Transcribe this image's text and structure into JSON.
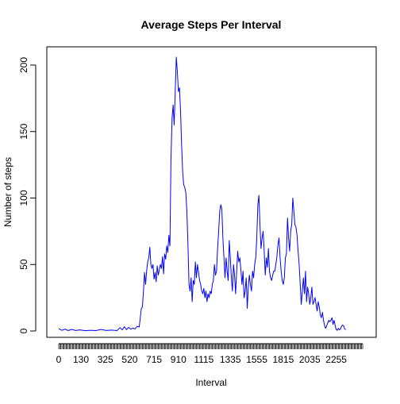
{
  "chart_data": {
    "type": "line",
    "title": "Average Steps Per Interval",
    "xlabel": "Interval",
    "ylabel": "Number of steps",
    "series_color": "#0000FF",
    "ylim": [
      0,
      210
    ],
    "y_ticks": [
      0,
      50,
      100,
      150,
      200
    ],
    "x_tick_labels": [
      "0",
      "130",
      "325",
      "520",
      "715",
      "910",
      "1115",
      "1335",
      "1555",
      "1815",
      "2035",
      "2255"
    ],
    "x_label_positions": [
      0,
      21,
      44,
      67,
      90,
      113,
      137,
      162,
      187,
      212,
      237,
      262
    ],
    "num_intervals": 288,
    "grid": false,
    "legend": "none",
    "points": [
      [
        0,
        1.7
      ],
      [
        3,
        0.5
      ],
      [
        6,
        1.4
      ],
      [
        9,
        0.3
      ],
      [
        12,
        1.2
      ],
      [
        16,
        0.4
      ],
      [
        20,
        0.8
      ],
      [
        25,
        0.2
      ],
      [
        30,
        0.5
      ],
      [
        35,
        0.3
      ],
      [
        40,
        1.1
      ],
      [
        45,
        0.4
      ],
      [
        50,
        0.7
      ],
      [
        55,
        0.3
      ],
      [
        58,
        2.5
      ],
      [
        60,
        0.8
      ],
      [
        62,
        3.2
      ],
      [
        64,
        1.0
      ],
      [
        66,
        2.8
      ],
      [
        68,
        1.3
      ],
      [
        70,
        2.2
      ],
      [
        72,
        1.5
      ],
      [
        74,
        3.5
      ],
      [
        76,
        3.0
      ],
      [
        77,
        10
      ],
      [
        78,
        17
      ],
      [
        79,
        18
      ],
      [
        80,
        30
      ],
      [
        81,
        44
      ],
      [
        82,
        35
      ],
      [
        83,
        45
      ],
      [
        84,
        52
      ],
      [
        85,
        55
      ],
      [
        86,
        63
      ],
      [
        87,
        50
      ],
      [
        88,
        47
      ],
      [
        89,
        50
      ],
      [
        90,
        39
      ],
      [
        91,
        44
      ],
      [
        92,
        37
      ],
      [
        93,
        49
      ],
      [
        94,
        42
      ],
      [
        95,
        46
      ],
      [
        96,
        50
      ],
      [
        97,
        47
      ],
      [
        98,
        56
      ],
      [
        99,
        43
      ],
      [
        100,
        58
      ],
      [
        101,
        54
      ],
      [
        102,
        64
      ],
      [
        103,
        59
      ],
      [
        104,
        72
      ],
      [
        105,
        64
      ],
      [
        106,
        130
      ],
      [
        107,
        160
      ],
      [
        108,
        170
      ],
      [
        109,
        155
      ],
      [
        110,
        180
      ],
      [
        111,
        206
      ],
      [
        112,
        195
      ],
      [
        113,
        180
      ],
      [
        114,
        183
      ],
      [
        115,
        166
      ],
      [
        116,
        140
      ],
      [
        117,
        120
      ],
      [
        118,
        110
      ],
      [
        119,
        108
      ],
      [
        120,
        104
      ],
      [
        121,
        90
      ],
      [
        122,
        65
      ],
      [
        123,
        35
      ],
      [
        124,
        30
      ],
      [
        125,
        40
      ],
      [
        126,
        22
      ],
      [
        127,
        38
      ],
      [
        128,
        35
      ],
      [
        129,
        52
      ],
      [
        130,
        40
      ],
      [
        131,
        50
      ],
      [
        132,
        44
      ],
      [
        133,
        38
      ],
      [
        134,
        35
      ],
      [
        135,
        30
      ],
      [
        136,
        28
      ],
      [
        137,
        32
      ],
      [
        138,
        25
      ],
      [
        139,
        30
      ],
      [
        140,
        22
      ],
      [
        141,
        28
      ],
      [
        142,
        25
      ],
      [
        143,
        30
      ],
      [
        144,
        28
      ],
      [
        145,
        35
      ],
      [
        146,
        38
      ],
      [
        147,
        50
      ],
      [
        148,
        42
      ],
      [
        149,
        45
      ],
      [
        150,
        62
      ],
      [
        151,
        75
      ],
      [
        152,
        90
      ],
      [
        153,
        95
      ],
      [
        154,
        92
      ],
      [
        155,
        70
      ],
      [
        156,
        55
      ],
      [
        157,
        40
      ],
      [
        158,
        55
      ],
      [
        159,
        45
      ],
      [
        160,
        38
      ],
      [
        161,
        68
      ],
      [
        162,
        55
      ],
      [
        163,
        40
      ],
      [
        164,
        30
      ],
      [
        165,
        50
      ],
      [
        166,
        42
      ],
      [
        167,
        28
      ],
      [
        168,
        45
      ],
      [
        169,
        60
      ],
      [
        170,
        52
      ],
      [
        171,
        55
      ],
      [
        172,
        46
      ],
      [
        173,
        35
      ],
      [
        174,
        45
      ],
      [
        175,
        25
      ],
      [
        176,
        30
      ],
      [
        177,
        40
      ],
      [
        178,
        17
      ],
      [
        179,
        33
      ],
      [
        180,
        42
      ],
      [
        181,
        35
      ],
      [
        182,
        30
      ],
      [
        183,
        45
      ],
      [
        184,
        40
      ],
      [
        185,
        50
      ],
      [
        186,
        55
      ],
      [
        187,
        70
      ],
      [
        188,
        95
      ],
      [
        189,
        102
      ],
      [
        190,
        80
      ],
      [
        191,
        62
      ],
      [
        192,
        70
      ],
      [
        193,
        75
      ],
      [
        194,
        60
      ],
      [
        195,
        42
      ],
      [
        196,
        55
      ],
      [
        197,
        48
      ],
      [
        198,
        62
      ],
      [
        199,
        45
      ],
      [
        200,
        40
      ],
      [
        201,
        38
      ],
      [
        202,
        42
      ],
      [
        203,
        45
      ],
      [
        204,
        45
      ],
      [
        205,
        50
      ],
      [
        206,
        56
      ],
      [
        207,
        65
      ],
      [
        208,
        70
      ],
      [
        209,
        55
      ],
      [
        210,
        45
      ],
      [
        211,
        38
      ],
      [
        212,
        35
      ],
      [
        213,
        40
      ],
      [
        214,
        55
      ],
      [
        215,
        58
      ],
      [
        216,
        85
      ],
      [
        217,
        70
      ],
      [
        218,
        60
      ],
      [
        219,
        75
      ],
      [
        220,
        80
      ],
      [
        221,
        100
      ],
      [
        222,
        90
      ],
      [
        223,
        80
      ],
      [
        224,
        78
      ],
      [
        225,
        72
      ],
      [
        226,
        60
      ],
      [
        227,
        50
      ],
      [
        228,
        35
      ],
      [
        229,
        20
      ],
      [
        230,
        30
      ],
      [
        231,
        40
      ],
      [
        232,
        28
      ],
      [
        233,
        45
      ],
      [
        234,
        22
      ],
      [
        235,
        33
      ],
      [
        236,
        28
      ],
      [
        237,
        20
      ],
      [
        238,
        25
      ],
      [
        239,
        33
      ],
      [
        240,
        20
      ],
      [
        241,
        22
      ],
      [
        242,
        25
      ],
      [
        243,
        20
      ],
      [
        244,
        15
      ],
      [
        245,
        22
      ],
      [
        246,
        18
      ],
      [
        247,
        12
      ],
      [
        248,
        10
      ],
      [
        249,
        14
      ],
      [
        250,
        8
      ],
      [
        251,
        4
      ],
      [
        252,
        2
      ],
      [
        253,
        4
      ],
      [
        254,
        6
      ],
      [
        255,
        8
      ],
      [
        256,
        7
      ],
      [
        257,
        8
      ],
      [
        258,
        10
      ],
      [
        259,
        5
      ],
      [
        260,
        8
      ],
      [
        261,
        4
      ],
      [
        262,
        1
      ],
      [
        263,
        0.5
      ],
      [
        264,
        2
      ],
      [
        265,
        0.8
      ],
      [
        266,
        1.5
      ],
      [
        267,
        3.5
      ],
      [
        268,
        4.5
      ],
      [
        269,
        3.8
      ],
      [
        270,
        1.5
      ],
      [
        271,
        1.0
      ]
    ]
  }
}
